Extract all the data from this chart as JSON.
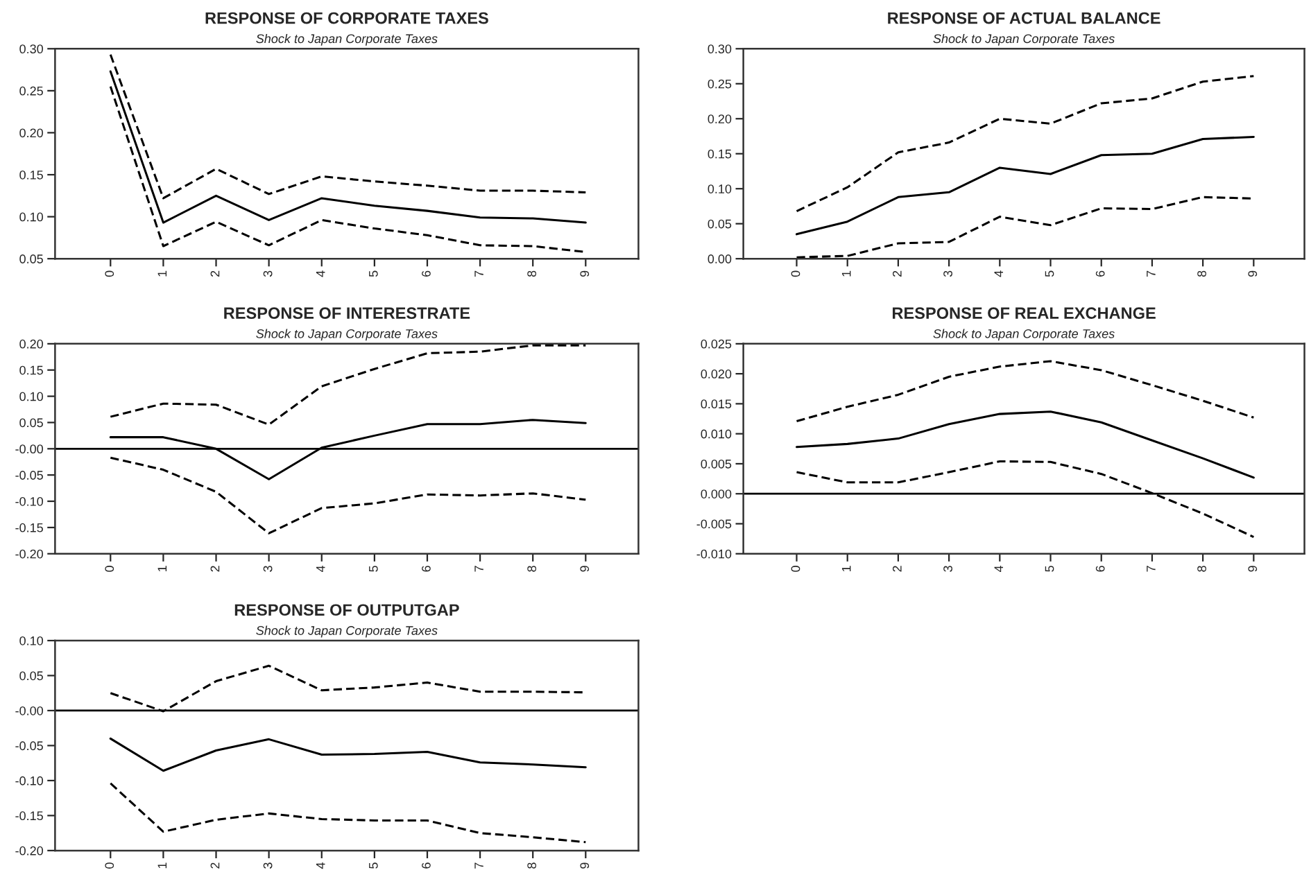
{
  "chart_data": [
    {
      "type": "line",
      "title": "RESPONSE OF CORPORATE TAXES",
      "subtitle": "Shock to Japan Corporate Taxes",
      "categories": [
        "0",
        "1",
        "2",
        "3",
        "4",
        "5",
        "6",
        "7",
        "8",
        "9"
      ],
      "ylim": [
        0.05,
        0.3
      ],
      "yticks": [
        {
          "value": 0.05,
          "label": "0.05"
        },
        {
          "value": 0.1,
          "label": "0.10"
        },
        {
          "value": 0.15,
          "label": "0.15"
        },
        {
          "value": 0.2,
          "label": "0.20"
        },
        {
          "value": 0.25,
          "label": "0.25"
        },
        {
          "value": 0.3,
          "label": "0.30"
        }
      ],
      "grid": false,
      "legend": false,
      "series": [
        {
          "color": "#000000",
          "line_style": "solid",
          "values": [
            0.273,
            0.093,
            0.125,
            0.096,
            0.122,
            0.113,
            0.107,
            0.099,
            0.098,
            0.093
          ]
        },
        {
          "color": "#000000",
          "line_style": "dashed",
          "values": [
            0.293,
            0.122,
            0.157,
            0.127,
            0.148,
            0.142,
            0.137,
            0.131,
            0.131,
            0.129
          ]
        },
        {
          "color": "#000000",
          "line_style": "dashed",
          "values": [
            0.255,
            0.065,
            0.094,
            0.066,
            0.096,
            0.086,
            0.078,
            0.066,
            0.065,
            0.058
          ]
        }
      ]
    },
    {
      "type": "line",
      "title": "RESPONSE OF ACTUAL BALANCE",
      "subtitle": "Shock to Japan Corporate Taxes",
      "categories": [
        "0",
        "1",
        "2",
        "3",
        "4",
        "5",
        "6",
        "7",
        "8",
        "9"
      ],
      "ylim": [
        0.0,
        0.3
      ],
      "yticks": [
        {
          "value": 0.0,
          "label": "0.00"
        },
        {
          "value": 0.05,
          "label": "0.05"
        },
        {
          "value": 0.1,
          "label": "0.10"
        },
        {
          "value": 0.15,
          "label": "0.15"
        },
        {
          "value": 0.2,
          "label": "0.20"
        },
        {
          "value": 0.25,
          "label": "0.25"
        },
        {
          "value": 0.3,
          "label": "0.30"
        }
      ],
      "grid": false,
      "legend": false,
      "series": [
        {
          "color": "#000000",
          "line_style": "solid",
          "values": [
            0.035,
            0.053,
            0.088,
            0.095,
            0.13,
            0.121,
            0.148,
            0.15,
            0.171,
            0.174
          ]
        },
        {
          "color": "#000000",
          "line_style": "dashed",
          "values": [
            0.068,
            0.102,
            0.152,
            0.166,
            0.2,
            0.193,
            0.222,
            0.229,
            0.253,
            0.261
          ]
        },
        {
          "color": "#000000",
          "line_style": "dashed",
          "values": [
            0.002,
            0.004,
            0.022,
            0.024,
            0.06,
            0.048,
            0.072,
            0.071,
            0.088,
            0.086
          ]
        }
      ]
    },
    {
      "type": "line",
      "title": "RESPONSE OF INTERESTRATE",
      "subtitle": "Shock to Japan Corporate Taxes",
      "categories": [
        "0",
        "1",
        "2",
        "3",
        "4",
        "5",
        "6",
        "7",
        "8",
        "9"
      ],
      "ylim": [
        -0.2,
        0.2
      ],
      "yticks": [
        {
          "value": -0.2,
          "label": "-0.20"
        },
        {
          "value": -0.15,
          "label": "-0.15"
        },
        {
          "value": -0.1,
          "label": "-0.10"
        },
        {
          "value": -0.05,
          "label": "-0.05"
        },
        {
          "value": 0.0,
          "label": "-0.00"
        },
        {
          "value": 0.05,
          "label": "0.05"
        },
        {
          "value": 0.1,
          "label": "0.10"
        },
        {
          "value": 0.15,
          "label": "0.15"
        },
        {
          "value": 0.2,
          "label": "0.20"
        }
      ],
      "grid": false,
      "legend": false,
      "ref_lines": [
        {
          "axis": "y",
          "value": 0,
          "color": "#000000"
        }
      ],
      "series": [
        {
          "color": "#000000",
          "line_style": "solid",
          "values": [
            0.022,
            0.022,
            0.0,
            -0.058,
            0.002,
            0.025,
            0.047,
            0.047,
            0.055,
            0.049
          ]
        },
        {
          "color": "#000000",
          "line_style": "dashed",
          "values": [
            0.061,
            0.086,
            0.084,
            0.046,
            0.119,
            0.152,
            0.182,
            0.185,
            0.197,
            0.197
          ]
        },
        {
          "color": "#000000",
          "line_style": "dashed",
          "values": [
            -0.017,
            -0.04,
            -0.082,
            -0.161,
            -0.113,
            -0.104,
            -0.087,
            -0.089,
            -0.085,
            -0.097
          ]
        }
      ]
    },
    {
      "type": "line",
      "title": "RESPONSE OF REAL EXCHANGE",
      "subtitle": "Shock to Japan Corporate Taxes",
      "categories": [
        "0",
        "1",
        "2",
        "3",
        "4",
        "5",
        "6",
        "7",
        "8",
        "9"
      ],
      "ylim": [
        -0.01,
        0.025
      ],
      "yticks": [
        {
          "value": -0.01,
          "label": "-0.010"
        },
        {
          "value": -0.005,
          "label": "-0.005"
        },
        {
          "value": 0.0,
          "label": "0.000"
        },
        {
          "value": 0.005,
          "label": "0.005"
        },
        {
          "value": 0.01,
          "label": "0.010"
        },
        {
          "value": 0.015,
          "label": "0.015"
        },
        {
          "value": 0.02,
          "label": "0.020"
        },
        {
          "value": 0.025,
          "label": "0.025"
        }
      ],
      "grid": false,
      "legend": false,
      "ref_lines": [
        {
          "axis": "y",
          "value": 0,
          "color": "#000000"
        }
      ],
      "series": [
        {
          "color": "#000000",
          "line_style": "solid",
          "values": [
            0.0078,
            0.0083,
            0.0092,
            0.0116,
            0.0133,
            0.0137,
            0.0119,
            0.0089,
            0.0059,
            0.0027
          ]
        },
        {
          "color": "#000000",
          "line_style": "dashed",
          "values": [
            0.0121,
            0.0145,
            0.0165,
            0.0195,
            0.0212,
            0.0221,
            0.0206,
            0.0181,
            0.0155,
            0.0127
          ]
        },
        {
          "color": "#000000",
          "line_style": "dashed",
          "values": [
            0.0036,
            0.0019,
            0.0019,
            0.0036,
            0.0054,
            0.0053,
            0.0033,
            0.0001,
            -0.0033,
            -0.0072
          ]
        }
      ]
    },
    {
      "type": "line",
      "title": "RESPONSE OF OUTPUTGAP",
      "subtitle": "Shock to Japan Corporate Taxes",
      "categories": [
        "0",
        "1",
        "2",
        "3",
        "4",
        "5",
        "6",
        "7",
        "8",
        "9"
      ],
      "ylim": [
        -0.2,
        0.1
      ],
      "yticks": [
        {
          "value": -0.2,
          "label": "-0.20"
        },
        {
          "value": -0.15,
          "label": "-0.15"
        },
        {
          "value": -0.1,
          "label": "-0.10"
        },
        {
          "value": -0.05,
          "label": "-0.05"
        },
        {
          "value": 0.0,
          "label": "-0.00"
        },
        {
          "value": 0.05,
          "label": "0.05"
        },
        {
          "value": 0.1,
          "label": "0.10"
        }
      ],
      "grid": false,
      "legend": false,
      "ref_lines": [
        {
          "axis": "y",
          "value": 0,
          "color": "#000000"
        }
      ],
      "series": [
        {
          "color": "#000000",
          "line_style": "solid",
          "values": [
            -0.04,
            -0.086,
            -0.057,
            -0.041,
            -0.063,
            -0.062,
            -0.059,
            -0.074,
            -0.077,
            -0.081
          ]
        },
        {
          "color": "#000000",
          "line_style": "dashed",
          "values": [
            0.025,
            -0.001,
            0.042,
            0.064,
            0.029,
            0.033,
            0.04,
            0.027,
            0.027,
            0.026
          ]
        },
        {
          "color": "#000000",
          "line_style": "dashed",
          "values": [
            -0.104,
            -0.173,
            -0.156,
            -0.147,
            -0.155,
            -0.157,
            -0.157,
            -0.175,
            -0.181,
            -0.188
          ]
        }
      ]
    }
  ]
}
